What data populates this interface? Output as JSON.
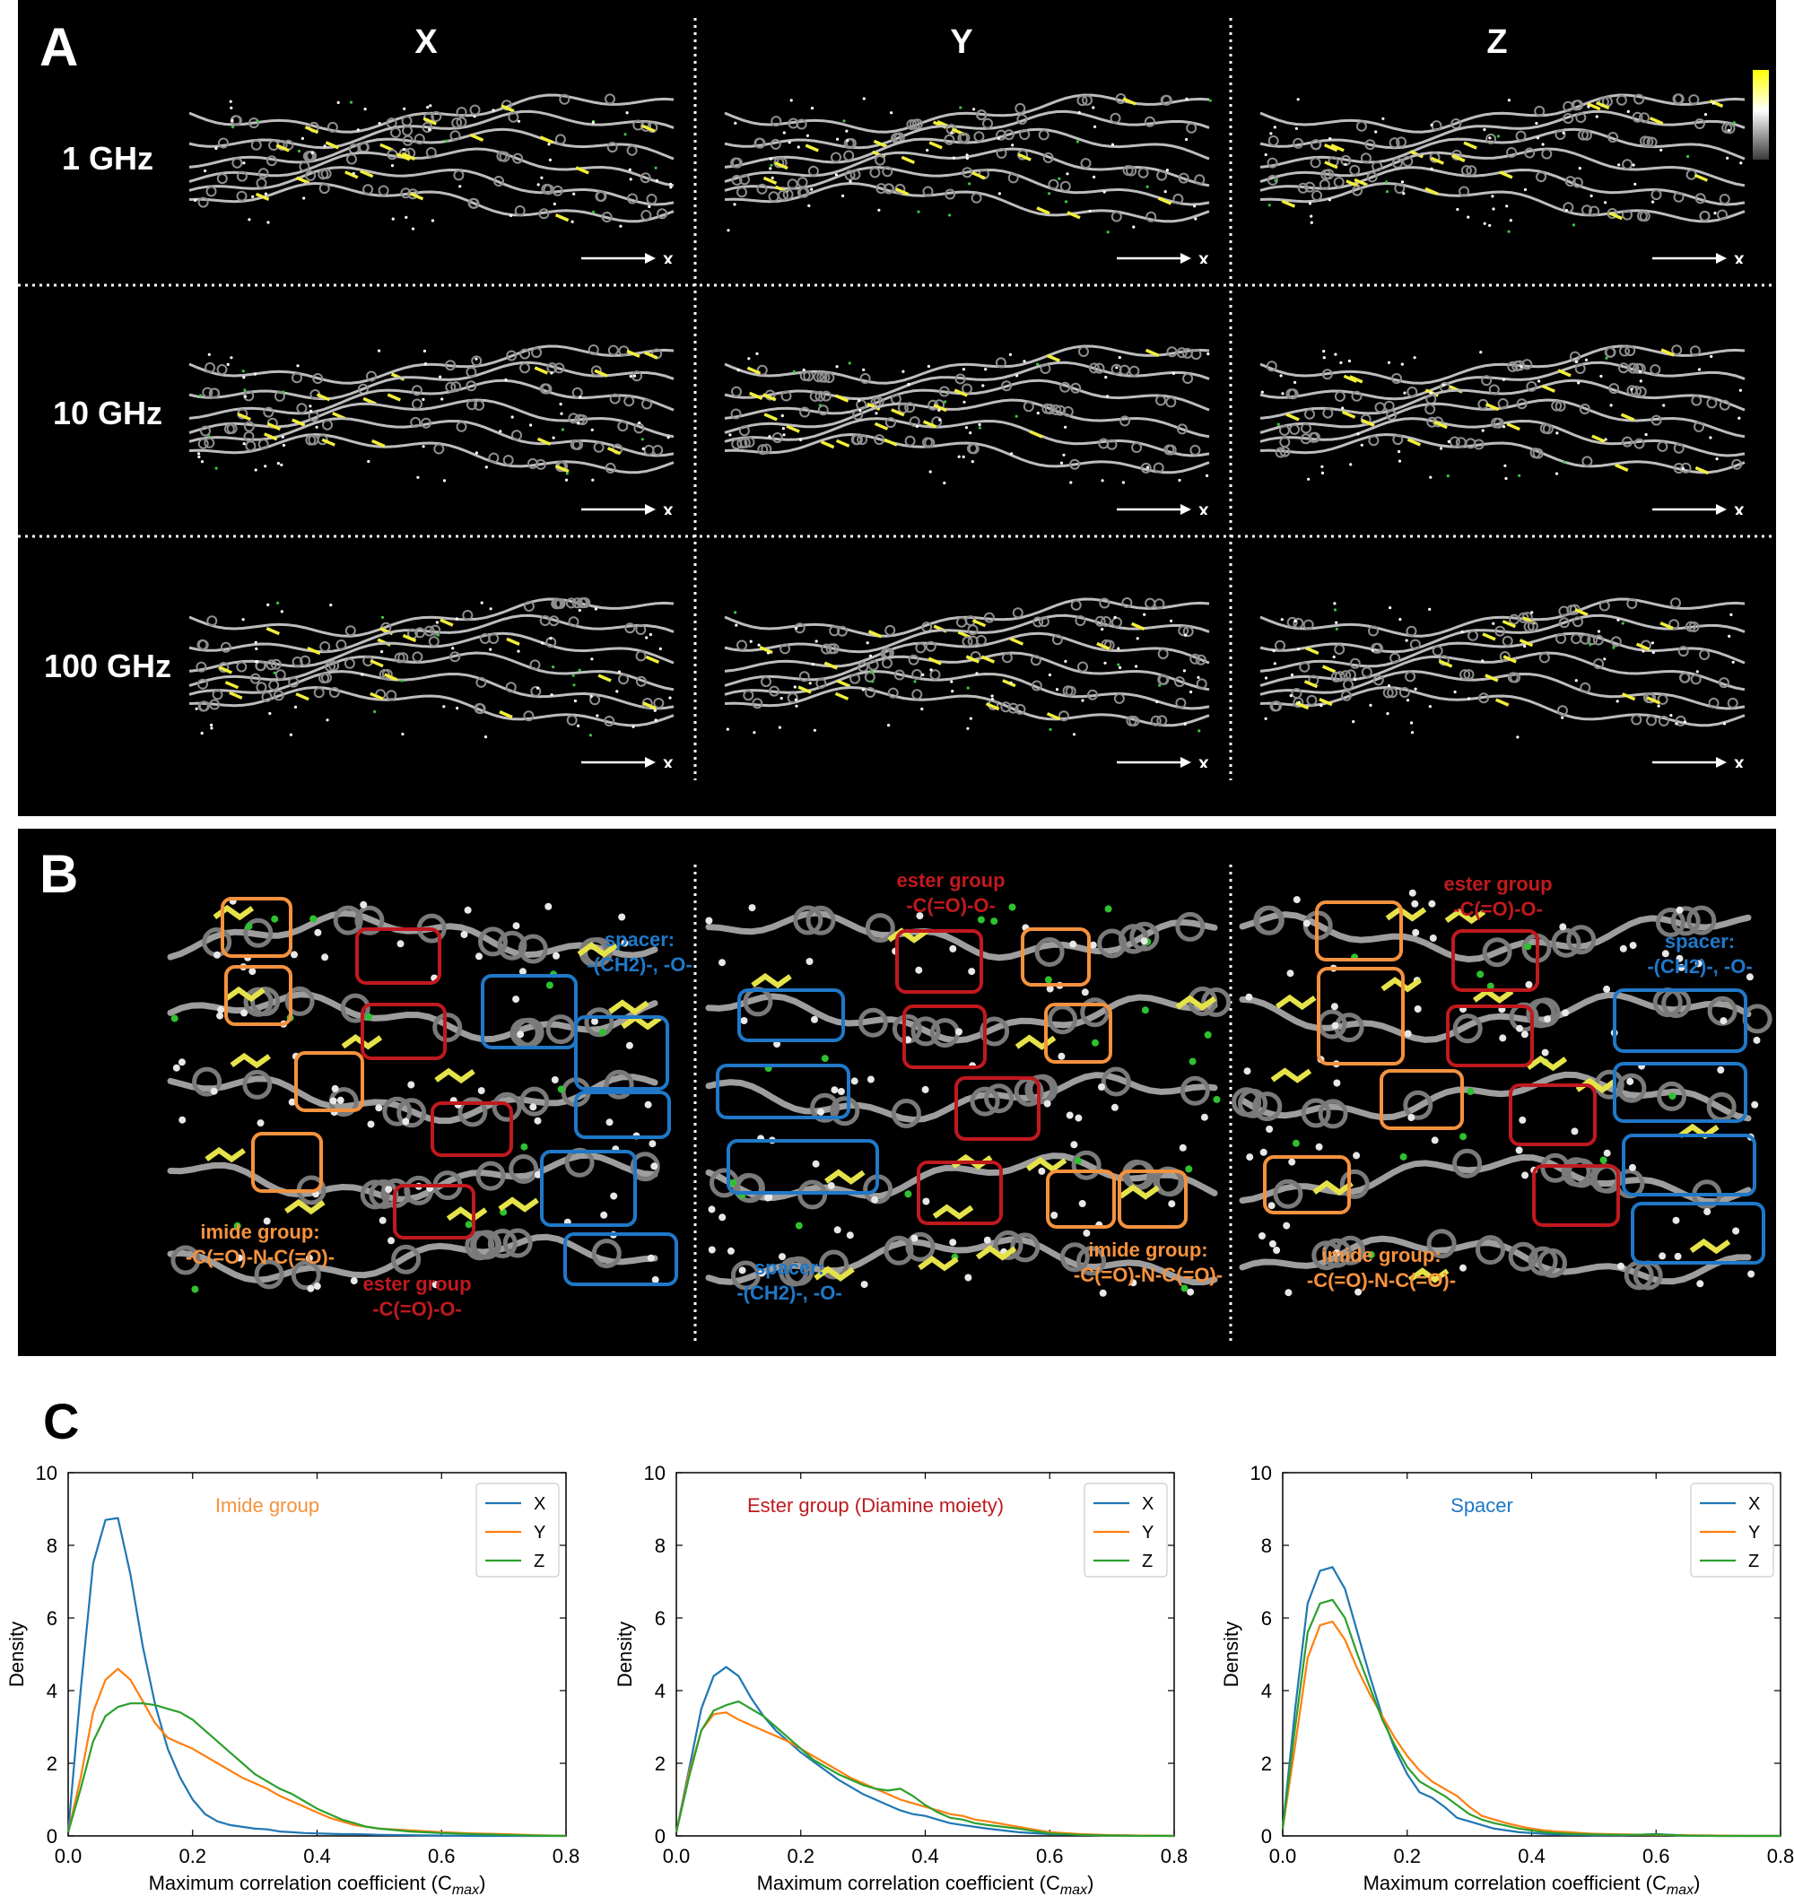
{
  "panel_a": {
    "label": "A",
    "columns": [
      "X",
      "Y",
      "Z"
    ],
    "rows": [
      "1 GHz",
      "10 GHz",
      "100 GHz"
    ],
    "axis_label": "x",
    "colorbar_colors": [
      "#ffff00",
      "#ffffff",
      "#3a3a3a"
    ]
  },
  "panel_b": {
    "label": "B",
    "sub1": {
      "spacer": [
        "spacer:",
        "-(CH2)-, -O-"
      ],
      "imide": [
        "imide group:",
        "-C(=O)-N-C(=O)-"
      ],
      "ester": [
        "ester group",
        "-C(=O)-O-"
      ]
    },
    "sub2": {
      "ester": [
        "ester group",
        "-C(=O)-O-"
      ],
      "spacer": [
        "spacer:",
        "-(CH2)-, -O-"
      ],
      "imide": [
        "imide group:",
        "-C(=O)-N-C(=O)-"
      ]
    },
    "sub3": {
      "ester": [
        "ester group",
        "-C(=O)-O-"
      ],
      "spacer": [
        "spacer:",
        "-(CH2)-, -O-"
      ],
      "imide": [
        "imide group:",
        "-C(=O)-N-C(=O)-"
      ]
    },
    "colors": {
      "imide": "#f5923e",
      "ester": "#c0191e",
      "spacer": "#1f78c8"
    }
  },
  "panel_c": {
    "label": "C",
    "series_colors": {
      "X": "#1f77b4",
      "Y": "#ff7f0e",
      "Z": "#2ca02c"
    }
  },
  "chart_data": [
    {
      "type": "line",
      "title": "Imide group",
      "title_color": "#f5923e",
      "xlabel": "Maximum correlation coefficient (C",
      "xlabel_sub": "max",
      "ylabel": "Density",
      "xlim": [
        0.0,
        0.8
      ],
      "ylim": [
        0,
        10
      ],
      "xticks": [
        "0.0",
        "0.2",
        "0.4",
        "0.6",
        "0.8"
      ],
      "yticks": [
        "0",
        "2",
        "4",
        "6",
        "8",
        "10"
      ],
      "legend": [
        "X",
        "Y",
        "Z"
      ],
      "x": [
        0.0,
        0.02,
        0.04,
        0.06,
        0.08,
        0.1,
        0.12,
        0.14,
        0.16,
        0.18,
        0.2,
        0.22,
        0.24,
        0.26,
        0.28,
        0.3,
        0.32,
        0.34,
        0.36,
        0.38,
        0.4,
        0.42,
        0.44,
        0.46,
        0.48,
        0.5,
        0.55,
        0.6,
        0.65,
        0.7,
        0.75,
        0.8
      ],
      "series": [
        {
          "name": "X",
          "values": [
            0.1,
            4.0,
            7.5,
            8.7,
            8.75,
            7.2,
            5.2,
            3.6,
            2.4,
            1.6,
            1.0,
            0.6,
            0.4,
            0.3,
            0.25,
            0.2,
            0.18,
            0.12,
            0.1,
            0.08,
            0.07,
            0.06,
            0.05,
            0.05,
            0.04,
            0.03,
            0.02,
            0.01,
            0.0,
            0.0,
            0.0,
            0.0
          ]
        },
        {
          "name": "Y",
          "values": [
            0.1,
            1.6,
            3.4,
            4.3,
            4.6,
            4.3,
            3.7,
            3.1,
            2.7,
            2.55,
            2.4,
            2.2,
            2.0,
            1.8,
            1.6,
            1.45,
            1.3,
            1.1,
            0.95,
            0.8,
            0.65,
            0.5,
            0.4,
            0.3,
            0.25,
            0.2,
            0.15,
            0.1,
            0.07,
            0.05,
            0.02,
            0.0
          ]
        },
        {
          "name": "Z",
          "values": [
            0.1,
            1.3,
            2.6,
            3.3,
            3.55,
            3.65,
            3.65,
            3.6,
            3.5,
            3.4,
            3.2,
            2.9,
            2.6,
            2.3,
            2.0,
            1.7,
            1.5,
            1.3,
            1.15,
            0.95,
            0.75,
            0.6,
            0.45,
            0.35,
            0.25,
            0.2,
            0.12,
            0.08,
            0.05,
            0.03,
            0.01,
            0.0
          ]
        }
      ]
    },
    {
      "type": "line",
      "title": "Ester group (Diamine moiety)",
      "title_color": "#c0191e",
      "xlabel": "Maximum correlation coefficient (C",
      "xlabel_sub": "max",
      "ylabel": "Density",
      "xlim": [
        0.0,
        0.8
      ],
      "ylim": [
        0,
        10
      ],
      "xticks": [
        "0.0",
        "0.2",
        "0.4",
        "0.6",
        "0.8"
      ],
      "yticks": [
        "0",
        "2",
        "4",
        "6",
        "8",
        "10"
      ],
      "legend": [
        "X",
        "Y",
        "Z"
      ],
      "x": [
        0.0,
        0.02,
        0.04,
        0.06,
        0.08,
        0.1,
        0.12,
        0.14,
        0.16,
        0.18,
        0.2,
        0.22,
        0.24,
        0.26,
        0.28,
        0.3,
        0.32,
        0.34,
        0.36,
        0.38,
        0.4,
        0.42,
        0.44,
        0.46,
        0.48,
        0.5,
        0.55,
        0.6,
        0.65,
        0.7,
        0.75,
        0.8
      ],
      "series": [
        {
          "name": "X",
          "values": [
            0.1,
            1.8,
            3.5,
            4.4,
            4.65,
            4.4,
            3.8,
            3.3,
            2.9,
            2.6,
            2.3,
            2.05,
            1.8,
            1.55,
            1.35,
            1.15,
            1.0,
            0.85,
            0.7,
            0.6,
            0.55,
            0.45,
            0.35,
            0.3,
            0.25,
            0.2,
            0.1,
            0.05,
            0.03,
            0.02,
            0.01,
            0.0
          ]
        },
        {
          "name": "Y",
          "values": [
            0.1,
            1.7,
            2.9,
            3.35,
            3.4,
            3.2,
            3.05,
            2.9,
            2.75,
            2.6,
            2.4,
            2.2,
            2.0,
            1.8,
            1.6,
            1.45,
            1.3,
            1.15,
            1.0,
            0.9,
            0.8,
            0.7,
            0.6,
            0.55,
            0.45,
            0.4,
            0.25,
            0.1,
            0.05,
            0.02,
            0.01,
            0.0
          ]
        },
        {
          "name": "Z",
          "values": [
            0.1,
            1.6,
            2.9,
            3.45,
            3.6,
            3.7,
            3.5,
            3.3,
            3.0,
            2.7,
            2.4,
            2.1,
            1.9,
            1.7,
            1.55,
            1.4,
            1.3,
            1.25,
            1.3,
            1.1,
            0.85,
            0.65,
            0.5,
            0.45,
            0.35,
            0.3,
            0.2,
            0.07,
            0.03,
            0.01,
            0.0,
            0.0
          ]
        }
      ]
    },
    {
      "type": "line",
      "title": "Spacer",
      "title_color": "#1f78c8",
      "xlabel": "Maximum correlation coefficient (C",
      "xlabel_sub": "max",
      "ylabel": "Density",
      "xlim": [
        0.0,
        0.8
      ],
      "ylim": [
        0,
        10
      ],
      "xticks": [
        "0.0",
        "0.2",
        "0.4",
        "0.6",
        "0.8"
      ],
      "yticks": [
        "0",
        "2",
        "4",
        "6",
        "8",
        "10"
      ],
      "legend": [
        "X",
        "Y",
        "Z"
      ],
      "x": [
        0.0,
        0.02,
        0.04,
        0.06,
        0.08,
        0.1,
        0.12,
        0.14,
        0.16,
        0.18,
        0.2,
        0.22,
        0.24,
        0.26,
        0.28,
        0.3,
        0.32,
        0.34,
        0.36,
        0.38,
        0.4,
        0.42,
        0.44,
        0.46,
        0.48,
        0.5,
        0.55,
        0.6,
        0.65,
        0.7,
        0.75,
        0.8
      ],
      "series": [
        {
          "name": "X",
          "values": [
            0.2,
            3.5,
            6.4,
            7.3,
            7.4,
            6.8,
            5.6,
            4.4,
            3.3,
            2.4,
            1.7,
            1.2,
            1.05,
            0.8,
            0.5,
            0.4,
            0.3,
            0.2,
            0.15,
            0.1,
            0.08,
            0.06,
            0.04,
            0.03,
            0.03,
            0.02,
            0.02,
            0.05,
            0.01,
            0.0,
            0.0,
            0.0
          ]
        },
        {
          "name": "Y",
          "values": [
            0.2,
            2.5,
            4.9,
            5.8,
            5.9,
            5.4,
            4.6,
            3.9,
            3.3,
            2.7,
            2.2,
            1.8,
            1.5,
            1.3,
            1.1,
            0.8,
            0.55,
            0.45,
            0.35,
            0.27,
            0.2,
            0.15,
            0.12,
            0.1,
            0.08,
            0.06,
            0.04,
            0.03,
            0.02,
            0.01,
            0.0,
            0.0
          ]
        },
        {
          "name": "Z",
          "values": [
            0.2,
            3.0,
            5.6,
            6.4,
            6.5,
            6.0,
            5.0,
            4.1,
            3.2,
            2.5,
            1.9,
            1.5,
            1.3,
            1.1,
            0.85,
            0.6,
            0.45,
            0.35,
            0.28,
            0.2,
            0.15,
            0.1,
            0.08,
            0.06,
            0.05,
            0.04,
            0.03,
            0.04,
            0.01,
            0.0,
            0.0,
            0.0
          ]
        }
      ]
    }
  ]
}
